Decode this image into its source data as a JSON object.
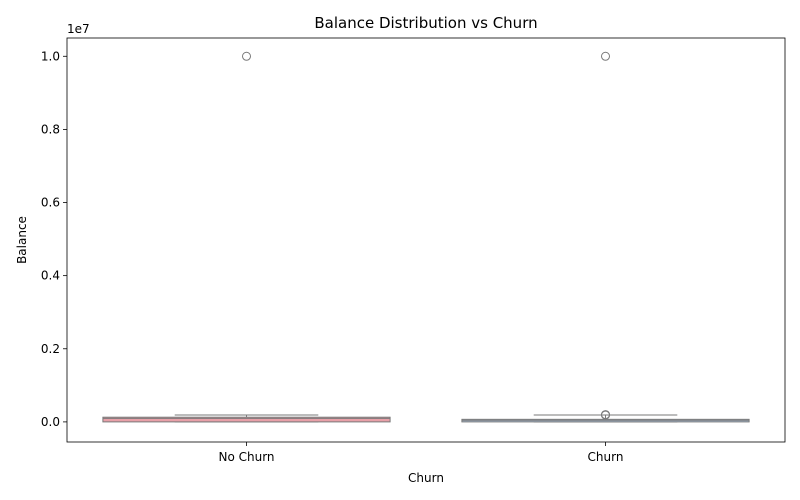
{
  "chart_data": {
    "type": "box",
    "title": "Balance Distribution vs Churn",
    "xlabel": "Churn",
    "ylabel": "Balance",
    "y_offset_label": "1e7",
    "y_scale_factor": 10000000,
    "ylim": [
      -550000,
      10500000
    ],
    "yticks": [
      0,
      2000000,
      4000000,
      6000000,
      8000000,
      10000000
    ],
    "ytick_labels": [
      "0.0",
      "0.2",
      "0.4",
      "0.6",
      "0.8",
      "1.0"
    ],
    "grid": false,
    "categories": [
      "No Churn",
      "Churn"
    ],
    "boxes": [
      {
        "category": "No Churn",
        "color": "#e8a0a8",
        "q1": 0,
        "median": 95000,
        "q3": 128000,
        "whisker_low": 0,
        "whisker_high": 190000,
        "outliers": [
          10000000
        ]
      },
      {
        "category": "Churn",
        "color": "#a6bdd7",
        "q1": 0,
        "median": 45000,
        "q3": 70000,
        "whisker_low": 0,
        "whisker_high": 190000,
        "outliers": [
          185000,
          200000,
          10000000
        ]
      }
    ]
  }
}
